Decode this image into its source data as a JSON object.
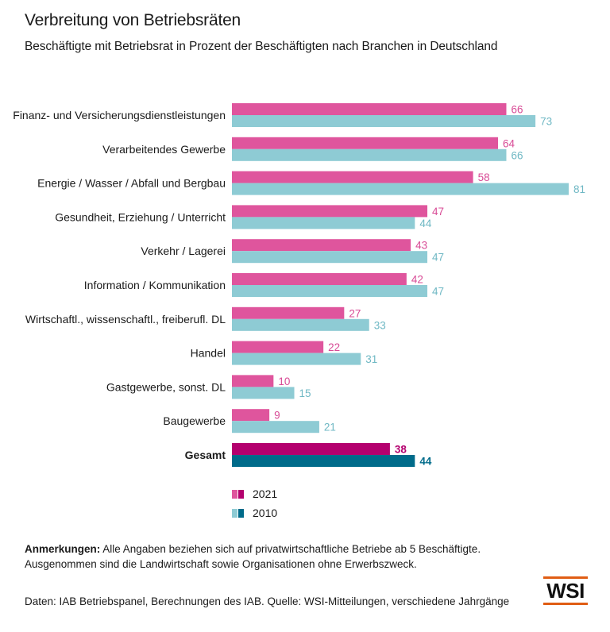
{
  "chart_data": {
    "type": "bar",
    "orientation": "horizontal",
    "title": "Verbreitung von Betriebsräten",
    "subtitle": "Beschäftigte mit Betriebsrat in Prozent der Beschäftigten nach Branchen in Deutschland",
    "categories": [
      "Finanz- und Versicherungsdienstleistungen",
      "Verarbeitendes Gewerbe",
      "Energie / Wasser / Abfall und Bergbau",
      "Gesundheit, Erziehung / Unterricht",
      "Verkehr / Lagerei",
      "Information / Kommunikation",
      "Wirtschaftl., wissenschaftl., freiberufl. DL",
      "Handel",
      "Gastgewerbe, sonst. DL",
      "Baugewerbe",
      "Gesamt"
    ],
    "highlight_category": "Gesamt",
    "series": [
      {
        "name": "2021",
        "values": [
          66,
          64,
          58,
          47,
          43,
          42,
          27,
          22,
          10,
          9,
          38
        ]
      },
      {
        "name": "2010",
        "values": [
          73,
          66,
          81,
          44,
          47,
          47,
          33,
          31,
          15,
          21,
          44
        ]
      }
    ],
    "colors": {
      "2021": "#df559d",
      "2021_highlight": "#b4006e",
      "2010": "#8ecbd4",
      "2010_highlight": "#006b8a",
      "2021_label": "#d84b96",
      "2010_label": "#6fb8c4"
    },
    "xlim": [
      0,
      81
    ],
    "legend": [
      "2021",
      "2010"
    ],
    "legend_position": "bottom-left"
  },
  "notes": {
    "label": "Anmerkungen:",
    "line1": "Alle Angaben beziehen sich auf privatwirtschaftliche Betriebe ab 5 Beschäftigte.",
    "line2": "Ausgenommen sind die Landwirtschaft sowie Organisationen ohne Erwerbszweck."
  },
  "source": "Daten: IAB Betriebspanel, Berechnungen des IAB. Quelle: WSI-Mitteilungen, verschiedene Jahrgänge",
  "logo": "WSI"
}
